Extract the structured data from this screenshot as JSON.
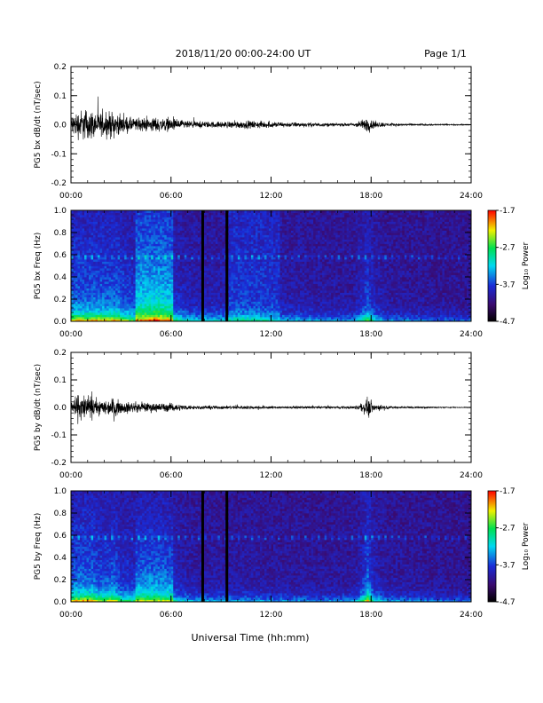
{
  "header": {
    "title": "2018/11/20  00:00-24:00 UT",
    "page": "Page 1/1"
  },
  "xlabel": "Universal Time (hh:mm)",
  "chart_data": [
    {
      "type": "line",
      "ylabel": "PG5 bx dB/dt (nT/sec)",
      "xlim": [
        0,
        24
      ],
      "ylim": [
        -0.2,
        0.2
      ],
      "xticks": [
        "00:00",
        "06:00",
        "12:00",
        "18:00",
        "24:00"
      ],
      "yticks": [
        "-0.2",
        "-0.1",
        "0.0",
        "0.1",
        "0.2"
      ],
      "envelope": {
        "hours": [
          0,
          0.5,
          1,
          1.5,
          2,
          2.5,
          3,
          4,
          5,
          6,
          7,
          8,
          9,
          10,
          11,
          12,
          13,
          14,
          15,
          16,
          17,
          17.5,
          17.8,
          18.2,
          19,
          20,
          21,
          22,
          23,
          24
        ],
        "amplitude": [
          0.08,
          0.12,
          0.13,
          0.1,
          0.09,
          0.11,
          0.07,
          0.05,
          0.06,
          0.05,
          0.03,
          0.025,
          0.025,
          0.03,
          0.03,
          0.025,
          0.02,
          0.018,
          0.015,
          0.012,
          0.015,
          0.04,
          0.06,
          0.03,
          0.012,
          0.01,
          0.008,
          0.006,
          0.005,
          0.004
        ]
      }
    },
    {
      "type": "heatmap",
      "ylabel": "PG5 bx Freq (Hz)",
      "xlim": [
        0,
        24
      ],
      "ylim": [
        0.0,
        1.0
      ],
      "xticks": [
        "00:00",
        "06:00",
        "12:00",
        "18:00",
        "24:00"
      ],
      "yticks": [
        "0.0",
        "0.2",
        "0.4",
        "0.6",
        "0.8",
        "1.0"
      ],
      "colorbar": {
        "label": "Log₁₀ Power",
        "range": [
          -4.7,
          -1.7
        ],
        "ticks": [
          "-1.7",
          "-2.7",
          "-3.7",
          "-4.7"
        ]
      },
      "data_gaps_hours": [
        7.9,
        9.35
      ]
    },
    {
      "type": "line",
      "ylabel": "PG5 by dB/dt (nT/sec)",
      "xlim": [
        0,
        24
      ],
      "ylim": [
        -0.2,
        0.2
      ],
      "xticks": [
        "00:00",
        "06:00",
        "12:00",
        "18:00",
        "24:00"
      ],
      "yticks": [
        "-0.2",
        "-0.1",
        "0.0",
        "0.1",
        "0.2"
      ],
      "envelope": {
        "hours": [
          0,
          0.5,
          1,
          1.5,
          2,
          2.5,
          3,
          4,
          5,
          6,
          7,
          8,
          9,
          10,
          11,
          12,
          13,
          14,
          15,
          16,
          17,
          17.5,
          17.8,
          18.2,
          19,
          20,
          21,
          22,
          23,
          24
        ],
        "amplitude": [
          0.06,
          0.12,
          0.1,
          0.07,
          0.06,
          0.08,
          0.05,
          0.04,
          0.04,
          0.035,
          0.02,
          0.015,
          0.015,
          0.015,
          0.015,
          0.012,
          0.01,
          0.01,
          0.01,
          0.01,
          0.012,
          0.04,
          0.08,
          0.03,
          0.012,
          0.01,
          0.008,
          0.005,
          0.004,
          0.003
        ]
      }
    },
    {
      "type": "heatmap",
      "ylabel": "PG5 by Freq (Hz)",
      "xlim": [
        0,
        24
      ],
      "ylim": [
        0.0,
        1.0
      ],
      "xticks": [
        "00:00",
        "06:00",
        "12:00",
        "18:00",
        "24:00"
      ],
      "yticks": [
        "0.0",
        "0.2",
        "0.4",
        "0.6",
        "0.8",
        "1.0"
      ],
      "colorbar": {
        "label": "Log₁₀ Power",
        "range": [
          -4.7,
          -1.7
        ],
        "ticks": [
          "-1.7",
          "-2.7",
          "-3.7",
          "-4.7"
        ]
      },
      "data_gaps_hours": [
        7.9,
        9.35
      ]
    }
  ]
}
